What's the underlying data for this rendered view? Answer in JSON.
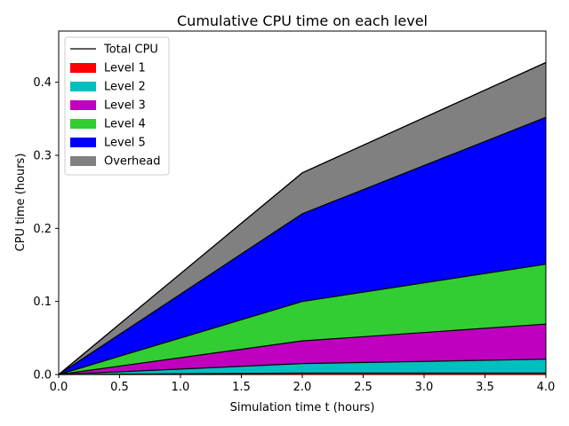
{
  "chart_data": {
    "type": "area",
    "stacked": true,
    "title": "Cumulative CPU time on each level",
    "xlabel": "Simulation time t (hours)",
    "ylabel": "CPU time (hours)",
    "x": [
      0.0,
      2.0,
      4.0
    ],
    "xlim": [
      0.0,
      4.0
    ],
    "ylim": [
      0.0,
      0.47
    ],
    "xticks": [
      0.0,
      0.5,
      1.0,
      1.5,
      2.0,
      2.5,
      3.0,
      3.5,
      4.0
    ],
    "xtick_labels": [
      "0.0",
      "0.5",
      "1.0",
      "1.5",
      "2.0",
      "2.5",
      "3.0",
      "3.5",
      "4.0"
    ],
    "yticks": [
      0.0,
      0.1,
      0.2,
      0.3,
      0.4
    ],
    "ytick_labels": [
      "0.0",
      "0.1",
      "0.2",
      "0.3",
      "0.4"
    ],
    "series": [
      {
        "name": "Level 1",
        "color": "#ff0000",
        "values": [
          0.0,
          0.002,
          0.002
        ]
      },
      {
        "name": "Level 2",
        "color": "#00bfbf",
        "values": [
          0.0,
          0.013,
          0.019
        ]
      },
      {
        "name": "Level 3",
        "color": "#bf00bf",
        "values": [
          0.0,
          0.031,
          0.048
        ]
      },
      {
        "name": "Level 4",
        "color": "#32cd32",
        "values": [
          0.0,
          0.054,
          0.082
        ]
      },
      {
        "name": "Level 5",
        "color": "#0000ff",
        "values": [
          0.0,
          0.12,
          0.201
        ]
      },
      {
        "name": "Overhead",
        "color": "#808080",
        "values": [
          0.0,
          0.056,
          0.075
        ]
      }
    ],
    "total": {
      "name": "Total CPU",
      "color": "#000000",
      "values": [
        0.0,
        0.276,
        0.427
      ]
    },
    "legend_position": "upper-left",
    "grid": false
  }
}
